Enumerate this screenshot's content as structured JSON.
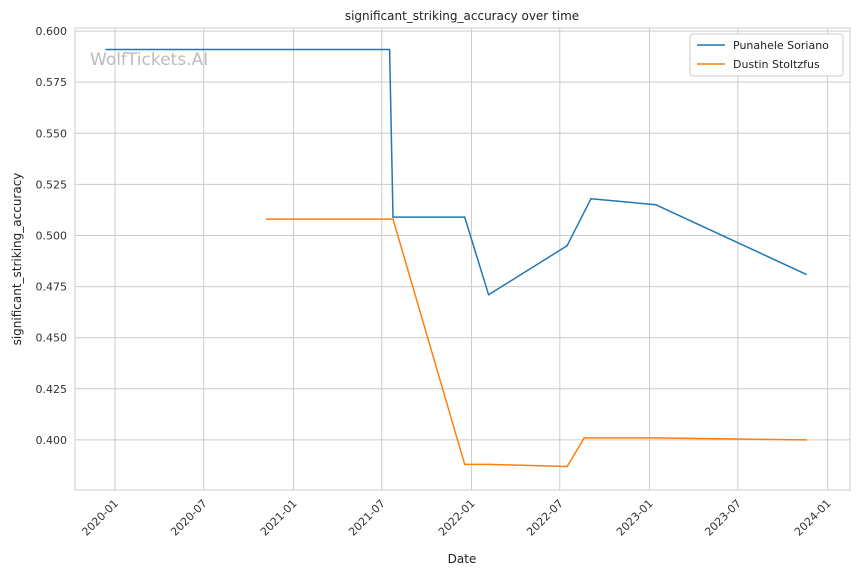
{
  "watermark": "WolfTickets.AI",
  "chart_data": {
    "type": "line",
    "title": "significant_striking_accuracy over time",
    "xlabel": "Date",
    "ylabel": "significant_striking_accuracy",
    "x_ticks": [
      "2020-01",
      "2020-07",
      "2021-01",
      "2021-07",
      "2022-01",
      "2022-07",
      "2023-01",
      "2023-07",
      "2024-01"
    ],
    "y_ticks": [
      "0.400",
      "0.425",
      "0.450",
      "0.475",
      "0.500",
      "0.525",
      "0.550",
      "0.575",
      "0.600"
    ],
    "xlim": [
      "2019-10-11",
      "2024-02-16"
    ],
    "ylim": [
      0.3755,
      0.6015
    ],
    "grid": true,
    "legend_position": "top-right",
    "series": [
      {
        "name": "Punahele Soriano",
        "color": "#1f77b4",
        "points": [
          [
            "2019-12-14",
            0.591
          ],
          [
            "2021-07-17",
            0.591
          ],
          [
            "2021-07-24",
            0.509
          ],
          [
            "2021-12-18",
            0.509
          ],
          [
            "2022-02-05",
            0.471
          ],
          [
            "2022-07-16",
            0.495
          ],
          [
            "2022-09-03",
            0.518
          ],
          [
            "2023-01-14",
            0.515
          ],
          [
            "2023-11-18",
            0.481
          ]
        ]
      },
      {
        "name": "Dustin Stoltzfus",
        "color": "#ff7f0e",
        "points": [
          [
            "2020-11-07",
            0.508
          ],
          [
            "2021-07-24",
            0.508
          ],
          [
            "2021-12-18",
            0.388
          ],
          [
            "2022-02-05",
            0.388
          ],
          [
            "2022-07-16",
            0.387
          ],
          [
            "2022-08-20",
            0.401
          ],
          [
            "2023-01-14",
            0.401
          ],
          [
            "2023-11-18",
            0.4
          ]
        ]
      }
    ]
  }
}
